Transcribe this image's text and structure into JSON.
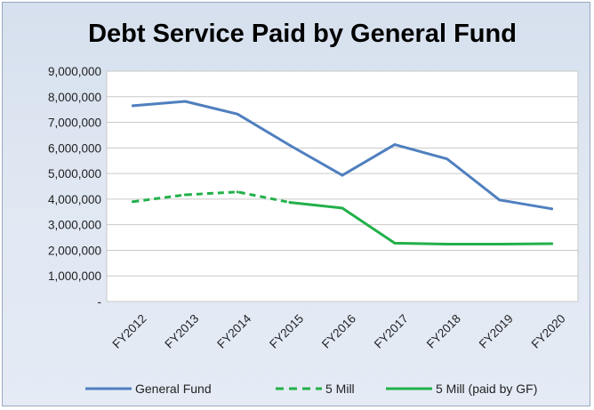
{
  "chart_data": {
    "type": "line",
    "title": "Debt Service Paid by General Fund",
    "xlabel": "",
    "ylabel": "",
    "categories": [
      "FY2012",
      "FY2013",
      "FY2014",
      "FY2015",
      "FY2016",
      "FY2017",
      "FY2018",
      "FY2019",
      "FY2020"
    ],
    "y_tick_labels": [
      "-",
      "1,000,000",
      "2,000,000",
      "3,000,000",
      "4,000,000",
      "5,000,000",
      "6,000,000",
      "7,000,000",
      "8,000,000",
      "9,000,000"
    ],
    "ylim": [
      0,
      9000000
    ],
    "grid": true,
    "legend_position": "bottom",
    "series": [
      {
        "name": "General Fund",
        "color": "#4f7fbf",
        "dash": "solid",
        "values": [
          7650000,
          7820000,
          7320000,
          6100000,
          4930000,
          6130000,
          5570000,
          3970000,
          3620000
        ]
      },
      {
        "name": "5 Mill",
        "color": "#22b04a",
        "dash": "dashed",
        "values": [
          3900000,
          4170000,
          4280000,
          3870000,
          null,
          null,
          null,
          null,
          null
        ]
      },
      {
        "name": "5 Mill (paid by GF)",
        "color": "#22b04a",
        "dash": "solid",
        "values": [
          null,
          null,
          null,
          3870000,
          3650000,
          2280000,
          2240000,
          2240000,
          2260000
        ]
      }
    ]
  }
}
